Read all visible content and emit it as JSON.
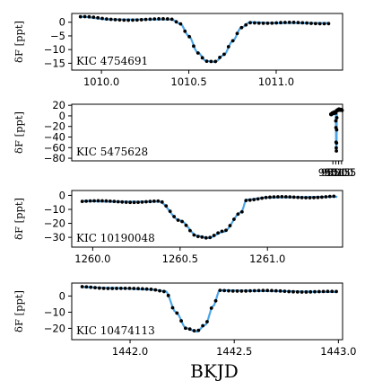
{
  "chart_data": {
    "type": "line",
    "xlabel": "BKJD",
    "model_color": "#4da6e8",
    "point_color": "#000000",
    "panels": [
      {
        "label": "KIC 4754691",
        "ylabel": "δF [ppt]",
        "xlim": [
          1009.83,
          1011.38
        ],
        "ylim": [
          -17.5,
          3.2
        ],
        "xticks": [
          1010.0,
          1010.5,
          1011.0
        ],
        "xticklabels": [
          "1010.0",
          "1010.5",
          "1011.0"
        ],
        "yticks": [
          0,
          -5,
          -10,
          -15
        ],
        "yticklabels": [
          "0",
          "−5",
          "−10",
          "−15"
        ],
        "model": {
          "x": [
            1009.88,
            1010.05,
            1010.4,
            1010.45,
            1010.5,
            1010.55,
            1010.6,
            1010.65,
            1010.7,
            1010.75,
            1010.8,
            1010.85,
            1011.0,
            1011.3
          ],
          "y": [
            2.0,
            1.0,
            1.0,
            -0.5,
            -5,
            -11,
            -14.2,
            -14.5,
            -12,
            -7,
            -2,
            0.0,
            -0.3,
            -0.3
          ]
        },
        "data": {
          "x_start": 1009.88,
          "x_end": 1011.3,
          "n": 58,
          "noise": 0.25
        }
      },
      {
        "label": "KIC 5475628",
        "ylabel": "δF [ppt]",
        "xlim": [
          904.8,
          951.68
        ],
        "ylim": [
          -85,
          22
        ],
        "xticks": [
          950.0,
          950.5,
          951.0,
          951.5
        ],
        "xticklabels": [
          "950.0",
          "950.5",
          "951.0",
          "951.5"
        ],
        "yticks": [
          20,
          0,
          -20,
          -40,
          -60,
          -80
        ],
        "yticklabels": [
          "20",
          "0",
          "−20",
          "−40",
          "−60",
          "−80"
        ],
        "model": {
          "x": [
            949.64,
            950.0,
            950.4,
            950.48,
            950.52,
            950.56,
            950.6,
            950.64,
            950.67,
            950.7,
            951.0,
            951.6
          ],
          "y": [
            3,
            5,
            7,
            6,
            -15,
            -50,
            -68,
            -50,
            -15,
            10,
            12,
            11
          ]
        },
        "data": {
          "x_start": 949.64,
          "x_end": 951.6,
          "n": 78,
          "noise": 0.8
        }
      },
      {
        "label": "KIC 10190048",
        "ylabel": "δF [ppt]",
        "xlim": [
          1259.88,
          1261.43
        ],
        "ylim": [
          -37,
          3.5
        ],
        "xticks": [
          1260.0,
          1260.5,
          1261.0
        ],
        "xticklabels": [
          "1260.0",
          "1260.5",
          "1261.0"
        ],
        "yticks": [
          0,
          -10,
          -20,
          -30
        ],
        "yticklabels": [
          "0",
          "−10",
          "−20",
          "−30"
        ],
        "model": {
          "x": [
            1259.94,
            1260.1,
            1260.3,
            1260.38,
            1260.5,
            1260.6,
            1260.66,
            1260.75,
            1260.85,
            1260.88,
            1261.0,
            1261.4
          ],
          "y": [
            -4,
            -4.5,
            -4.5,
            -4.5,
            -18,
            -29,
            -30.5,
            -26,
            -12,
            -3,
            -1.5,
            -1
          ]
        },
        "data": {
          "x_start": 1259.94,
          "x_end": 1261.38,
          "n": 64,
          "noise": 0.5
        }
      },
      {
        "label": "KIC 10474113",
        "ylabel": "δF [ppt]",
        "xlim": [
          1441.72,
          1443.02
        ],
        "ylim": [
          -27,
          8
        ],
        "xticks": [
          1442.0,
          1442.5,
          1443.0
        ],
        "xticklabels": [
          "1442.0",
          "1442.5",
          "1443.0"
        ],
        "yticks": [
          0,
          -10,
          -20
        ],
        "yticklabels": [
          "0",
          "−10",
          "−20"
        ],
        "model": {
          "x": [
            1441.77,
            1441.9,
            1442.1,
            1442.17,
            1442.22,
            1442.27,
            1442.32,
            1442.36,
            1442.4,
            1442.43,
            1442.7,
            1442.99
          ],
          "y": [
            5.5,
            5,
            4,
            3,
            -10,
            -20,
            -22,
            -18,
            -6,
            3.5,
            3,
            2.5
          ]
        },
        "data": {
          "x_start": 1441.77,
          "x_end": 1442.99,
          "n": 60,
          "noise": 0.35
        }
      }
    ]
  }
}
